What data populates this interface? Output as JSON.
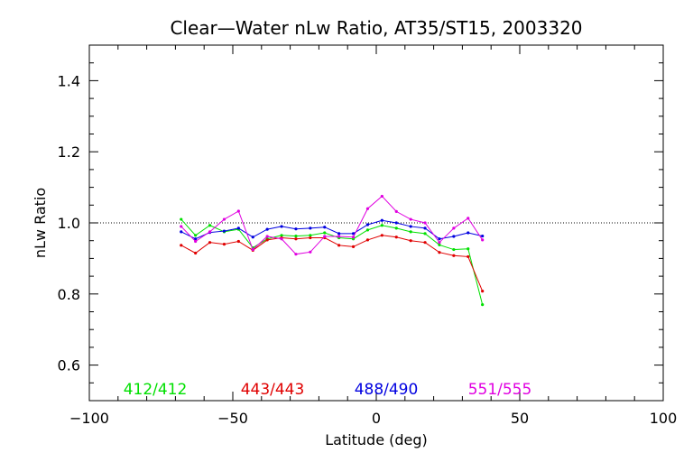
{
  "chart_data": {
    "type": "line",
    "title": "Clear—Water nLw Ratio, AT35/ST15, 2003320",
    "xlabel": "Latitude (deg)",
    "ylabel": "nLw Ratio",
    "xlim": [
      -100,
      100
    ],
    "ylim": [
      0.5,
      1.5
    ],
    "x_ticks": [
      -100,
      -50,
      0,
      50,
      100
    ],
    "x_tick_labels": [
      "−100",
      "−50",
      "0",
      "50",
      "100"
    ],
    "y_ticks": [
      0.6,
      0.8,
      1.0,
      1.2,
      1.4
    ],
    "y_tick_labels": [
      "0.6",
      "0.8",
      "1.0",
      "1.2",
      "1.4"
    ],
    "reference_line": 1.0,
    "grid": false,
    "legend_position": "bottom",
    "series": [
      {
        "name": "412/412",
        "color": "#00e000",
        "x": [
          -68,
          -63,
          -58,
          -53,
          -48,
          -43,
          -38,
          -33,
          -28,
          -23,
          -18,
          -13,
          -8,
          -3,
          2,
          7,
          12,
          17,
          22,
          27,
          32,
          37
        ],
        "y": [
          1.01,
          0.965,
          0.993,
          0.975,
          0.982,
          0.93,
          0.955,
          0.965,
          0.963,
          0.965,
          0.972,
          0.958,
          0.955,
          0.98,
          0.993,
          0.985,
          0.975,
          0.97,
          0.938,
          0.925,
          0.927,
          0.77
        ]
      },
      {
        "name": "443/443",
        "color": "#e00000",
        "x": [
          -68,
          -63,
          -58,
          -53,
          -48,
          -43,
          -38,
          -33,
          -28,
          -23,
          -18,
          -13,
          -8,
          -3,
          2,
          7,
          12,
          17,
          22,
          27,
          32,
          37
        ],
        "y": [
          0.937,
          0.915,
          0.945,
          0.94,
          0.948,
          0.923,
          0.952,
          0.958,
          0.955,
          0.958,
          0.958,
          0.937,
          0.933,
          0.952,
          0.965,
          0.96,
          0.95,
          0.945,
          0.917,
          0.908,
          0.905,
          0.808
        ]
      },
      {
        "name": "488/490",
        "color": "#0000e0",
        "x": [
          -68,
          -63,
          -58,
          -53,
          -48,
          -43,
          -38,
          -33,
          -28,
          -23,
          -18,
          -13,
          -8,
          -3,
          2,
          7,
          12,
          17,
          22,
          27,
          32,
          37
        ],
        "y": [
          0.975,
          0.955,
          0.973,
          0.977,
          0.985,
          0.96,
          0.982,
          0.99,
          0.983,
          0.985,
          0.988,
          0.97,
          0.97,
          0.995,
          1.007,
          1.0,
          0.99,
          0.985,
          0.955,
          0.962,
          0.972,
          0.963
        ]
      },
      {
        "name": "551/555",
        "color": "#e000e0",
        "x": [
          -68,
          -63,
          -58,
          -53,
          -48,
          -43,
          -38,
          -33,
          -28,
          -23,
          -18,
          -13,
          -8,
          -3,
          2,
          7,
          12,
          17,
          22,
          27,
          32,
          37
        ],
        "y": [
          0.99,
          0.948,
          0.975,
          1.01,
          1.033,
          0.925,
          0.962,
          0.955,
          0.912,
          0.918,
          0.962,
          0.962,
          0.96,
          1.04,
          1.075,
          1.032,
          1.01,
          1.0,
          0.945,
          0.985,
          1.013,
          0.952
        ]
      }
    ]
  }
}
